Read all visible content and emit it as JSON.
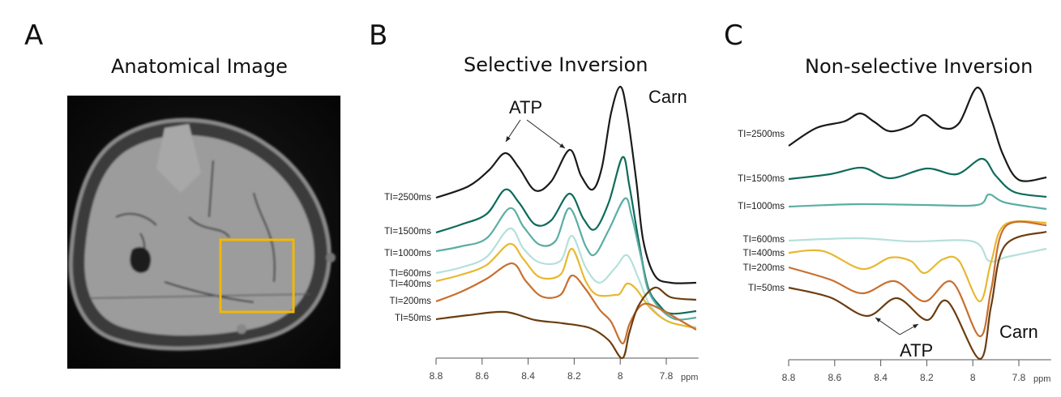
{
  "panels": {
    "a": {
      "letter": "A",
      "title": "Anatomical Image",
      "roi_color": "#f2b705"
    },
    "b": {
      "letter": "B",
      "title": "Selective Inversion"
    },
    "c": {
      "letter": "C",
      "title": "Non-selective Inversion"
    }
  },
  "chart_data": [
    {
      "type": "line",
      "title": "Selective Inversion",
      "xlabel": "ppm",
      "x_ticks": [
        8.8,
        8.6,
        8.4,
        8.2,
        8,
        7.8
      ],
      "x_tick_labels": [
        "8.8",
        "8.6",
        "8.4",
        "8.2",
        "8",
        "7.8"
      ],
      "xlim": [
        8.8,
        7.66
      ],
      "x_reversed": true,
      "y_units": "arbitrary intensity",
      "annotations": [
        {
          "text": "ATP",
          "targets_ppm": [
            8.49,
            8.22
          ]
        },
        {
          "text": "Carn"
        }
      ],
      "series": [
        {
          "name": "TI=2500ms",
          "color": "#1a1a1a",
          "points": [
            [
              8.8,
              198
            ],
            [
              8.66,
              212
            ],
            [
              8.57,
              232
            ],
            [
              8.5,
              253
            ],
            [
              8.44,
              235
            ],
            [
              8.37,
              207
            ],
            [
              8.3,
              218
            ],
            [
              8.22,
              257
            ],
            [
              8.17,
              225
            ],
            [
              8.12,
              208
            ],
            [
              8.08,
              235
            ],
            [
              8.04,
              302
            ],
            [
              8.0,
              335
            ],
            [
              7.97,
              302
            ],
            [
              7.93,
              218
            ],
            [
              7.9,
              145
            ],
            [
              7.85,
              102
            ],
            [
              7.78,
              93
            ],
            [
              7.67,
              93
            ]
          ]
        },
        {
          "name": "TI=1500ms",
          "color": "#0d6b5a",
          "points": [
            [
              8.8,
              155
            ],
            [
              8.69,
              165
            ],
            [
              8.58,
              178
            ],
            [
              8.5,
              208
            ],
            [
              8.44,
              192
            ],
            [
              8.37,
              165
            ],
            [
              8.3,
              170
            ],
            [
              8.22,
              203
            ],
            [
              8.16,
              172
            ],
            [
              8.11,
              159
            ],
            [
              8.05,
              192
            ],
            [
              7.99,
              248
            ],
            [
              7.96,
              212
            ],
            [
              7.92,
              145
            ],
            [
              7.88,
              88
            ],
            [
              7.83,
              65
            ],
            [
              7.78,
              55
            ],
            [
              7.67,
              58
            ]
          ]
        },
        {
          "name": "TI=1000ms",
          "color": "#5aaea4",
          "points": [
            [
              8.8,
              132
            ],
            [
              8.69,
              138
            ],
            [
              8.58,
              148
            ],
            [
              8.48,
              185
            ],
            [
              8.42,
              162
            ],
            [
              8.35,
              140
            ],
            [
              8.28,
              145
            ],
            [
              8.22,
              185
            ],
            [
              8.15,
              138
            ],
            [
              8.11,
              128
            ],
            [
              8.05,
              158
            ],
            [
              7.98,
              197
            ],
            [
              7.95,
              175
            ],
            [
              7.91,
              125
            ],
            [
              7.88,
              85
            ],
            [
              7.83,
              62
            ],
            [
              7.76,
              48
            ],
            [
              7.67,
              50
            ]
          ]
        },
        {
          "name": "TI=600ms",
          "color": "#b5e0db",
          "points": [
            [
              8.8,
              105
            ],
            [
              8.69,
              112
            ],
            [
              8.58,
              125
            ],
            [
              8.48,
              160
            ],
            [
              8.42,
              135
            ],
            [
              8.35,
              118
            ],
            [
              8.26,
              120
            ],
            [
              8.21,
              151
            ],
            [
              8.15,
              112
            ],
            [
              8.09,
              93
            ],
            [
              8.02,
              112
            ],
            [
              7.97,
              127
            ],
            [
              7.92,
              98
            ],
            [
              7.87,
              65
            ],
            [
              7.79,
              45
            ],
            [
              7.67,
              38
            ]
          ]
        },
        {
          "name": "TI=400ms",
          "color": "#e8b830",
          "points": [
            [
              8.8,
              95
            ],
            [
              8.69,
              103
            ],
            [
              8.58,
              115
            ],
            [
              8.48,
              141
            ],
            [
              8.42,
              122
            ],
            [
              8.35,
              100
            ],
            [
              8.26,
              103
            ],
            [
              8.21,
              135
            ],
            [
              8.15,
              95
            ],
            [
              8.1,
              78
            ],
            [
              8.02,
              78
            ],
            [
              8.0,
              80
            ],
            [
              7.97,
              92
            ],
            [
              7.93,
              85
            ],
            [
              7.87,
              62
            ],
            [
              7.79,
              45
            ],
            [
              7.67,
              37
            ]
          ]
        },
        {
          "name": "TI=200ms",
          "color": "#c86f2e",
          "points": [
            [
              8.8,
              70
            ],
            [
              8.69,
              82
            ],
            [
              8.58,
              98
            ],
            [
              8.47,
              117
            ],
            [
              8.41,
              95
            ],
            [
              8.34,
              76
            ],
            [
              8.26,
              78
            ],
            [
              8.21,
              102
            ],
            [
              8.15,
              85
            ],
            [
              8.09,
              60
            ],
            [
              8.04,
              45
            ],
            [
              7.99,
              18
            ],
            [
              7.96,
              42
            ],
            [
              7.92,
              62
            ],
            [
              7.88,
              67
            ],
            [
              7.81,
              58
            ],
            [
              7.73,
              45
            ],
            [
              7.67,
              35
            ]
          ]
        },
        {
          "name": "TI=50ms",
          "color": "#6b3d10",
          "points": [
            [
              8.8,
              48
            ],
            [
              8.66,
              53
            ],
            [
              8.5,
              57
            ],
            [
              8.37,
              47
            ],
            [
              8.25,
              43
            ],
            [
              8.13,
              37
            ],
            [
              8.05,
              22
            ],
            [
              7.99,
              0
            ],
            [
              7.96,
              32
            ],
            [
              7.92,
              65
            ],
            [
              7.85,
              87
            ],
            [
              7.78,
              75
            ],
            [
              7.67,
              72
            ]
          ]
        }
      ]
    },
    {
      "type": "line",
      "title": "Non-selective Inversion",
      "xlabel": "ppm",
      "x_ticks": [
        8.8,
        8.6,
        8.4,
        8.2,
        8,
        7.8
      ],
      "x_tick_labels": [
        "8.8",
        "8.6",
        "8.4",
        "8.2",
        "8",
        "7.8"
      ],
      "xlim": [
        8.8,
        7.66
      ],
      "x_reversed": true,
      "y_units": "arbitrary intensity",
      "annotations": [
        {
          "text": "ATP",
          "targets_ppm": [
            8.43,
            8.24
          ]
        },
        {
          "text": "Carn"
        }
      ],
      "series": [
        {
          "name": "TI=2500ms",
          "color": "#1a1a1a",
          "points": [
            [
              8.8,
              264
            ],
            [
              8.68,
              286
            ],
            [
              8.56,
              294
            ],
            [
              8.49,
              304
            ],
            [
              8.43,
              294
            ],
            [
              8.36,
              282
            ],
            [
              8.27,
              289
            ],
            [
              8.21,
              302
            ],
            [
              8.13,
              286
            ],
            [
              8.06,
              292
            ],
            [
              7.98,
              336
            ],
            [
              7.92,
              297
            ],
            [
              7.87,
              254
            ],
            [
              7.8,
              222
            ],
            [
              7.68,
              225
            ]
          ]
        },
        {
          "name": "TI=1500ms",
          "color": "#0d6b5a",
          "points": [
            [
              8.8,
              223
            ],
            [
              8.62,
              229
            ],
            [
              8.48,
              237
            ],
            [
              8.36,
              224
            ],
            [
              8.2,
              236
            ],
            [
              8.07,
              229
            ],
            [
              7.96,
              248
            ],
            [
              7.9,
              227
            ],
            [
              7.82,
              207
            ],
            [
              7.68,
              201
            ]
          ]
        },
        {
          "name": "TI=1000ms",
          "color": "#5aaea4",
          "points": [
            [
              8.8,
              189
            ],
            [
              8.5,
              192
            ],
            [
              8.21,
              191
            ],
            [
              7.98,
              191
            ],
            [
              7.93,
              204
            ],
            [
              7.86,
              194
            ],
            [
              7.68,
              186
            ]
          ]
        },
        {
          "name": "TI=600ms",
          "color": "#b5e0db",
          "points": [
            [
              8.8,
              147
            ],
            [
              8.5,
              150
            ],
            [
              8.27,
              146
            ],
            [
              8.0,
              146
            ],
            [
              7.93,
              122
            ],
            [
              7.85,
              127
            ],
            [
              7.68,
              137
            ]
          ]
        },
        {
          "name": "TI=400ms",
          "color": "#e8b830",
          "points": [
            [
              8.8,
              132
            ],
            [
              8.65,
              134
            ],
            [
              8.48,
              112
            ],
            [
              8.36,
              126
            ],
            [
              8.27,
              122
            ],
            [
              8.21,
              107
            ],
            [
              8.13,
              124
            ],
            [
              8.06,
              122
            ],
            [
              7.97,
              72
            ],
            [
              7.92,
              121
            ],
            [
              7.86,
              167
            ],
            [
              7.68,
              169
            ]
          ]
        },
        {
          "name": "TI=200ms",
          "color": "#c86f2e",
          "points": [
            [
              8.8,
              114
            ],
            [
              8.62,
              99
            ],
            [
              8.48,
              82
            ],
            [
              8.34,
              97
            ],
            [
              8.21,
              72
            ],
            [
              8.09,
              96
            ],
            [
              7.97,
              29
            ],
            [
              7.92,
              87
            ],
            [
              7.86,
              164
            ],
            [
              7.68,
              166
            ]
          ]
        },
        {
          "name": "TI=50ms",
          "color": "#6b3d10",
          "points": [
            [
              8.8,
              89
            ],
            [
              8.62,
              77
            ],
            [
              8.46,
              54
            ],
            [
              8.33,
              76
            ],
            [
              8.2,
              49
            ],
            [
              8.11,
              72
            ],
            [
              7.97,
              1
            ],
            [
              7.92,
              67
            ],
            [
              7.86,
              141
            ],
            [
              7.68,
              158
            ]
          ]
        }
      ]
    }
  ]
}
